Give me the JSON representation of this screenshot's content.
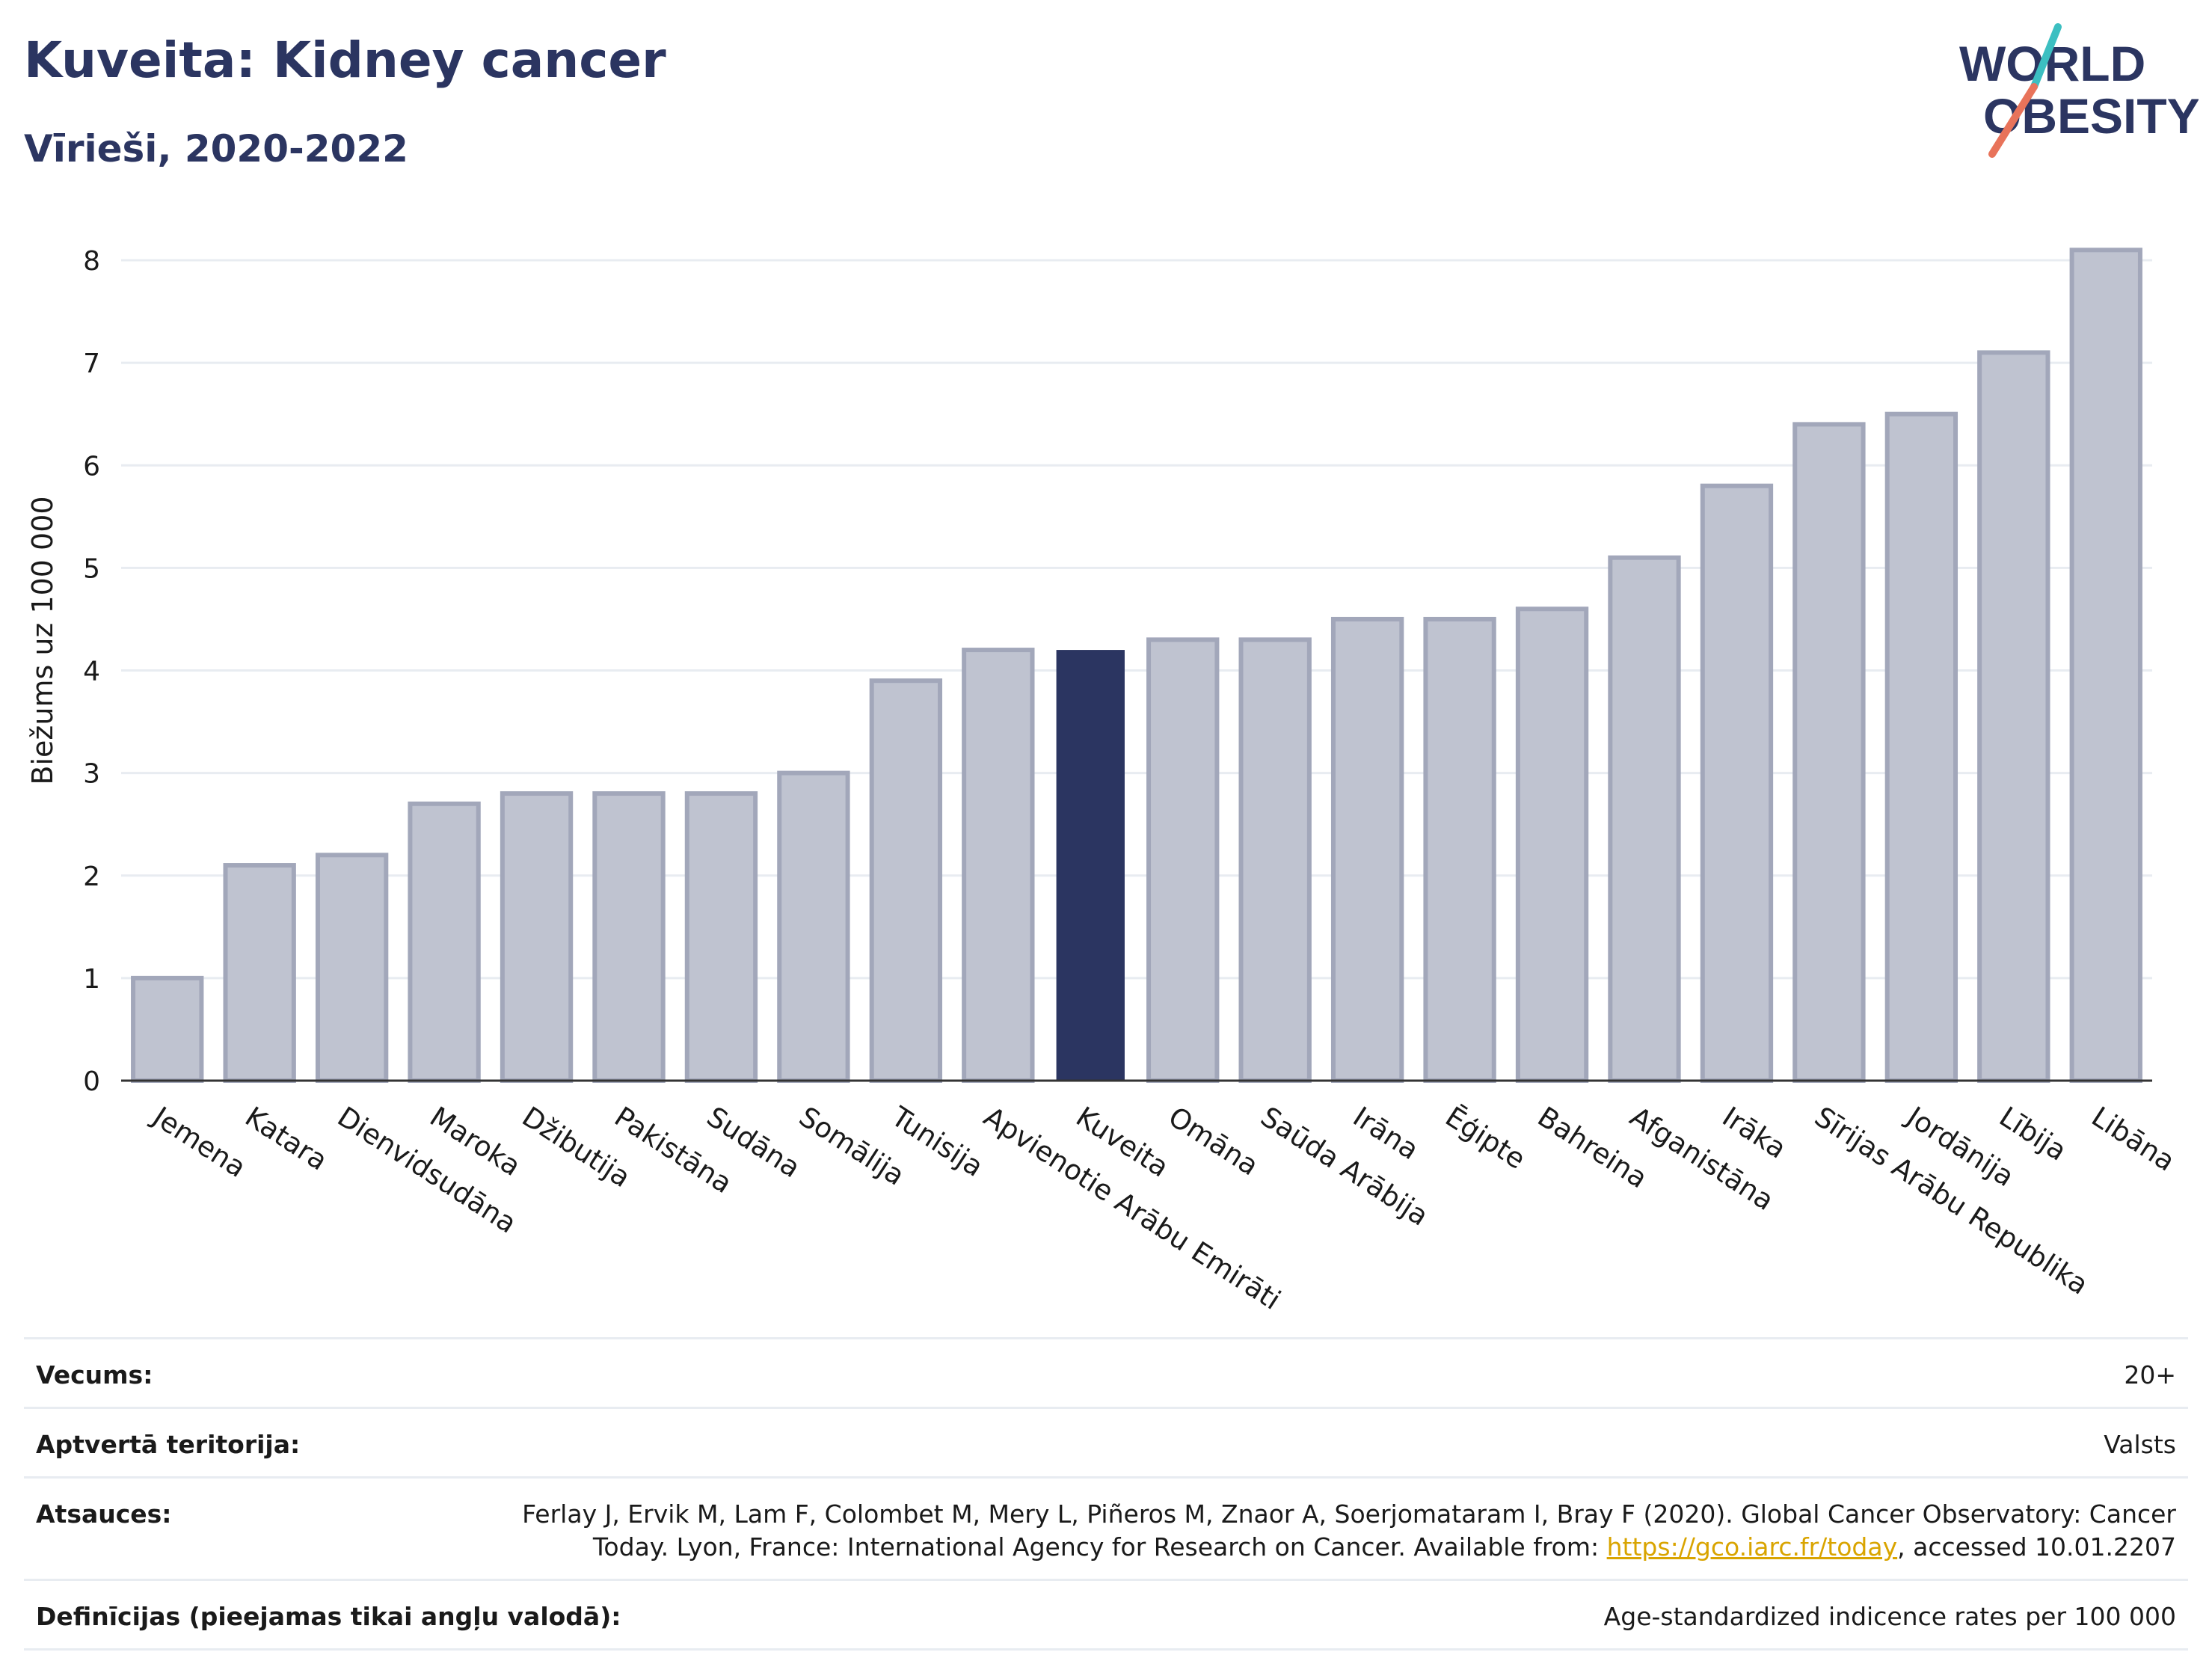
{
  "header": {
    "title": "Kuveita: Kidney cancer",
    "subtitle": "Vīrieši, 2020-2022"
  },
  "logo": {
    "line1": "WORLD",
    "line2": "OBESITY",
    "colors": {
      "text": "#2b3561",
      "slash_teal": "#3cbfc1",
      "slash_coral": "#e8735a"
    }
  },
  "colors": {
    "highlight_bar": "#2b3561",
    "other_bar_fill": "#bfc3d0",
    "other_bar_stroke": "#a2a7ba",
    "grid": "#e8ecf1"
  },
  "chart_data": {
    "type": "bar",
    "ylabel": "Biežums uz 100 000",
    "ylim": [
      0,
      8.35
    ],
    "yticks": [
      "0",
      "1",
      "2",
      "3",
      "4",
      "5",
      "6",
      "7",
      "8"
    ],
    "grid": true,
    "highlight": "Kuveita",
    "categories": [
      "Jemena",
      "Katara",
      "Dienvidsudāna",
      "Maroka",
      "Džibutija",
      "Pakistāna",
      "Sudāna",
      "Somālija",
      "Tunisija",
      "Apvienotie Arābu Emirāti",
      "Kuveita",
      "Omāna",
      "Saūda Arābija",
      "Irāna",
      "Ēģipte",
      "Bahreina",
      "Afganistāna",
      "Irāka",
      "Sīrijas Arābu Republika",
      "Jordānija",
      "Lībija",
      "Libāna"
    ],
    "values": [
      1.0,
      2.1,
      2.2,
      2.7,
      2.8,
      2.8,
      2.8,
      3.0,
      3.9,
      4.2,
      4.2,
      4.3,
      4.3,
      4.5,
      4.5,
      4.6,
      5.1,
      5.8,
      6.4,
      6.5,
      7.1,
      8.1
    ]
  },
  "meta": {
    "age": {
      "label": "Vecums:",
      "value": "20+"
    },
    "territory": {
      "label": "Aptvertā teritorija:",
      "value": "Valsts"
    },
    "refs": {
      "label": "Atsauces:",
      "text_line1": "Ferlay J, Ervik M, Lam F, Colombet M, Mery L, Piñeros M, Znaor A, Soerjomataram I, Bray F (2020). Global Cancer Observatory: Cancer",
      "text_line2_pre": "Today. Lyon, France: International Agency for Research on Cancer. Available from: ",
      "link": "https://gco.iarc.fr/today",
      "text_line2_post": ", accessed 10.01.2207"
    },
    "definitions": {
      "label": "Definīcijas (pieejamas tikai angļu valodā):",
      "value": "Age-standardized indicence rates per 100 000"
    }
  }
}
